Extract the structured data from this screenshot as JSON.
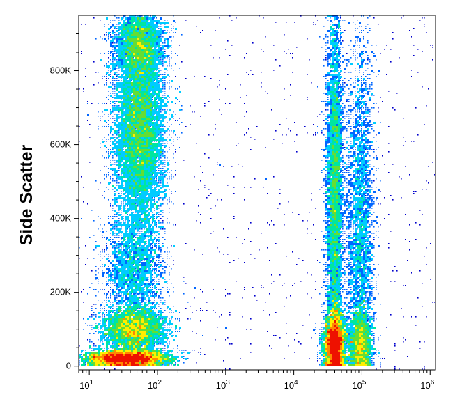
{
  "chart_data": {
    "type": "density-scatter",
    "title": "",
    "xlabel": "",
    "ylabel": "Side Scatter",
    "x_scale": "log",
    "xlim": [
      7,
      1200000
    ],
    "ylim": [
      -10000,
      950000
    ],
    "x_ticks": [
      {
        "value": 10,
        "base": "10",
        "exp": "1"
      },
      {
        "value": 100,
        "base": "10",
        "exp": "2"
      },
      {
        "value": 1000,
        "base": "10",
        "exp": "3"
      },
      {
        "value": 10000,
        "base": "10",
        "exp": "4"
      },
      {
        "value": 100000,
        "base": "10",
        "exp": "5"
      },
      {
        "value": 1000000,
        "base": "10",
        "exp": "6"
      }
    ],
    "y_ticks": [
      {
        "value": 0,
        "label": "0"
      },
      {
        "value": 200000,
        "label": "200K"
      },
      {
        "value": 400000,
        "label": "400K"
      },
      {
        "value": 600000,
        "label": "600K"
      },
      {
        "value": 800000,
        "label": "800K"
      }
    ],
    "colormap": [
      "#0000cc",
      "#0066ff",
      "#00ccff",
      "#00e6a0",
      "#66dd33",
      "#ffee00",
      "#ff8800",
      "#ee1100"
    ],
    "populations": [
      {
        "x_center": 55,
        "y_center": 640000,
        "x_spread_decades": 0.19,
        "y_spread": 150000,
        "weight": 9000,
        "peak": 0.55
      },
      {
        "x_center": 55,
        "y_center": 880000,
        "x_spread_decades": 0.18,
        "y_spread": 50000,
        "weight": 2500,
        "peak": 0.45
      },
      {
        "x_center": 45,
        "y_center": 250000,
        "x_spread_decades": 0.22,
        "y_spread": 70000,
        "weight": 2200,
        "peak": 0.35
      },
      {
        "x_center": 45,
        "y_center": 100000,
        "x_spread_decades": 0.24,
        "y_spread": 30000,
        "weight": 3500,
        "peak": 0.7
      },
      {
        "x_center": 35,
        "y_center": 20000,
        "x_spread_decades": 0.3,
        "y_spread": 12000,
        "weight": 4000,
        "peak": 1.0
      },
      {
        "x_center": 40000,
        "y_center": 450000,
        "x_spread_decades": 0.06,
        "y_spread": 270000,
        "weight": 5500,
        "peak": 0.5
      },
      {
        "x_center": 40000,
        "y_center": 60000,
        "x_spread_decades": 0.08,
        "y_spread": 40000,
        "weight": 3000,
        "peak": 1.0
      },
      {
        "x_center": 95000,
        "y_center": 350000,
        "x_spread_decades": 0.1,
        "y_spread": 250000,
        "weight": 3800,
        "peak": 0.35
      },
      {
        "x_center": 95000,
        "y_center": 60000,
        "x_spread_decades": 0.08,
        "y_spread": 40000,
        "weight": 1500,
        "peak": 0.6
      }
    ],
    "background_noise_points": 900,
    "grid": false,
    "legend": "none"
  }
}
